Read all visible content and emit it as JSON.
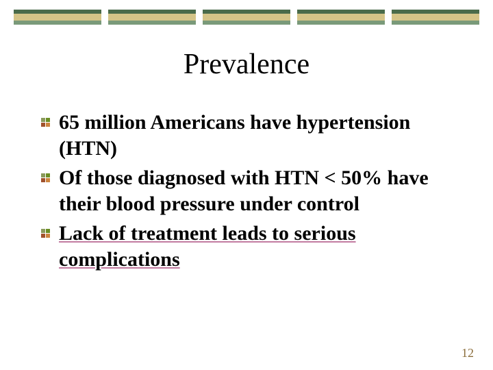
{
  "decor": {
    "segments": 5,
    "top_color": "#4a6b4a",
    "mid_color": "#d4c487",
    "bot_color": "#7a9a7a"
  },
  "title": "Prevalence",
  "title_fontsize": 42,
  "bullets": [
    {
      "text": "65 million Americans have hypertension (HTN)",
      "underlined": false
    },
    {
      "text": "Of those diagnosed with HTN < 50% have their blood pressure under control",
      "underlined": false
    },
    {
      "text": "Lack of treatment leads to serious complications",
      "underlined": true
    }
  ],
  "bullet_colors": {
    "q1": "#8a9a5b",
    "q2": "#6b8e23",
    "q3": "#a0522d",
    "q4": "#cd853f"
  },
  "body_fontsize": 30,
  "underline_color": "#c27ba0",
  "page_number": "12",
  "page_number_color": "#8a6d3b",
  "background_color": "#ffffff"
}
